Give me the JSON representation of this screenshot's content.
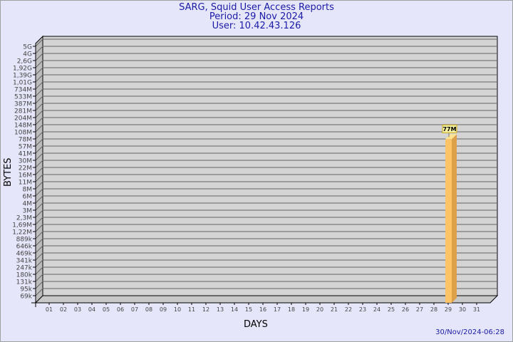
{
  "chart_data": {
    "type": "bar",
    "title": "SARG, Squid User Access Reports",
    "subtitle": [
      "Period: 29 Nov 2024",
      "User: 10.42.43.126"
    ],
    "xlabel": "DAYS",
    "ylabel": "BYTES",
    "footer": "30/Nov/2024-06:28",
    "categories": [
      "01",
      "02",
      "03",
      "04",
      "05",
      "06",
      "07",
      "08",
      "09",
      "10",
      "11",
      "12",
      "13",
      "14",
      "15",
      "16",
      "17",
      "18",
      "19",
      "20",
      "21",
      "22",
      "23",
      "24",
      "25",
      "26",
      "27",
      "28",
      "29",
      "30",
      "31"
    ],
    "values": [
      0,
      0,
      0,
      0,
      0,
      0,
      0,
      0,
      0,
      0,
      0,
      0,
      0,
      0,
      0,
      0,
      0,
      0,
      0,
      0,
      0,
      0,
      0,
      0,
      0,
      0,
      0,
      0,
      77000000,
      0,
      0
    ],
    "data_labels": {
      "29": "77M"
    },
    "y_scale": "log",
    "y_ticks": [
      {
        "label": "69k",
        "value": 69000
      },
      {
        "label": "95k",
        "value": 95000
      },
      {
        "label": "131k",
        "value": 131000
      },
      {
        "label": "180k",
        "value": 180000
      },
      {
        "label": "247k",
        "value": 247000
      },
      {
        "label": "341k",
        "value": 341000
      },
      {
        "label": "469k",
        "value": 469000
      },
      {
        "label": "646k",
        "value": 646000
      },
      {
        "label": "889k",
        "value": 889000
      },
      {
        "label": "1,22M",
        "value": 1220000
      },
      {
        "label": "1,69M",
        "value": 1690000
      },
      {
        "label": "2,3M",
        "value": 2300000
      },
      {
        "label": "3M",
        "value": 3000000
      },
      {
        "label": "4M",
        "value": 4000000
      },
      {
        "label": "6M",
        "value": 6000000
      },
      {
        "label": "8M",
        "value": 8000000
      },
      {
        "label": "11M",
        "value": 11000000
      },
      {
        "label": "16M",
        "value": 16000000
      },
      {
        "label": "22M",
        "value": 22000000
      },
      {
        "label": "30M",
        "value": 30000000
      },
      {
        "label": "41M",
        "value": 41000000
      },
      {
        "label": "57M",
        "value": 57000000
      },
      {
        "label": "78M",
        "value": 78000000
      },
      {
        "label": "108M",
        "value": 108000000
      },
      {
        "label": "148M",
        "value": 148000000
      },
      {
        "label": "204M",
        "value": 204000000
      },
      {
        "label": "281M",
        "value": 281000000
      },
      {
        "label": "387M",
        "value": 387000000
      },
      {
        "label": "533M",
        "value": 533000000
      },
      {
        "label": "734M",
        "value": 734000000
      },
      {
        "label": "1,01G",
        "value": 1010000000
      },
      {
        "label": "1,39G",
        "value": 1390000000
      },
      {
        "label": "1,92G",
        "value": 1920000000
      },
      {
        "label": "2,6G",
        "value": 2600000000
      },
      {
        "label": "4G",
        "value": 4000000000
      },
      {
        "label": "5G",
        "value": 5000000000
      }
    ],
    "grid": true,
    "colors": {
      "bar_front": "#fcc466",
      "bar_side": "#dca048",
      "bar_top": "#fde38f",
      "plot_bg": "#d4d4d4",
      "grid": "#666666",
      "title": "#1a1aa6",
      "label_box": "#f5f0a0"
    }
  }
}
